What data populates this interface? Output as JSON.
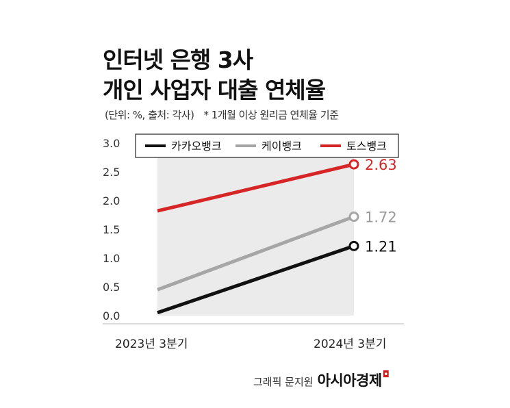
{
  "title_lines": [
    "인터넷 은행 3사",
    "개인 사업자 대출 연체율"
  ],
  "subtitle": "(단위: %, 출처: 각사)",
  "footnote": "* 1개월 이상 원리금 연체율 기준",
  "credit": {
    "label": "그래픽 문지원",
    "brand": "아시아경제",
    "brand_mark": "◘"
  },
  "chart_data": {
    "type": "line",
    "x": [
      "2023년 3분기",
      "2024년 3분기"
    ],
    "ylim": [
      0,
      3.0
    ],
    "yticks": [
      "0.0",
      "0.5",
      "1.0",
      "1.5",
      "2.0",
      "2.5",
      "3.0"
    ],
    "legend": "top",
    "series": [
      {
        "name": "카카오뱅크",
        "color": "#111111",
        "values": [
          0.05,
          1.21
        ],
        "end_label": "1.21"
      },
      {
        "name": "케이뱅크",
        "color": "#a6a6a6",
        "values": [
          0.45,
          1.72
        ],
        "end_label": "1.72"
      },
      {
        "name": "토스뱅크",
        "color": "#d62526",
        "values": [
          1.82,
          2.63
        ],
        "end_label": "2.63"
      }
    ],
    "colors": {
      "band": "#ebebeb",
      "axis": "#cfcfcf",
      "tick_text": "#333333",
      "end_label_text": [
        "#111111",
        "#9a9a9a",
        "#d62526"
      ]
    }
  }
}
